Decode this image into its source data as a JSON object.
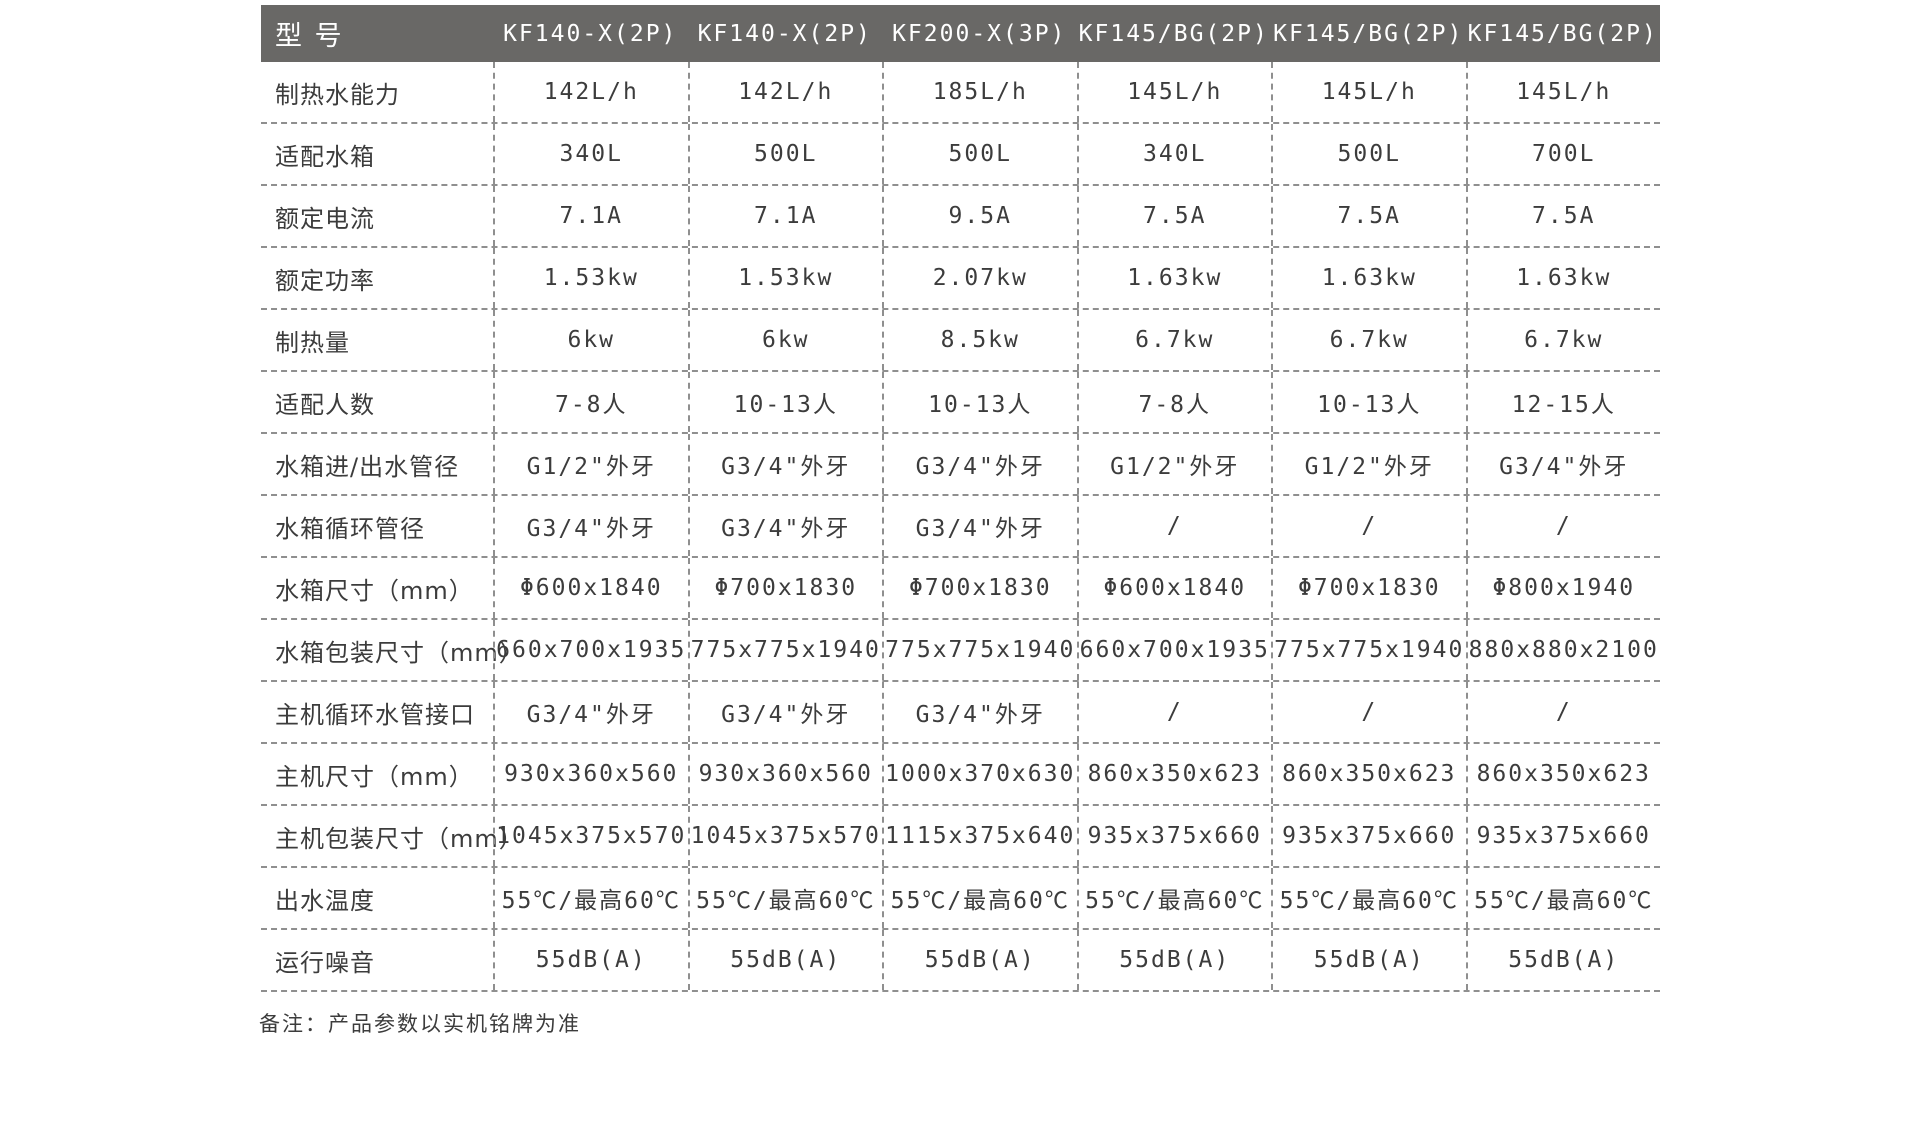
{
  "table": {
    "header": {
      "label": "型 号",
      "models": [
        "KF140-X(2P)",
        "KF140-X(2P)",
        "KF200-X(3P)",
        "KF145/BG(2P)",
        "KF145/BG(2P)",
        "KF145/BG(2P)"
      ]
    },
    "rows": [
      {
        "label": "制热水能力",
        "values": [
          "142L/h",
          "142L/h",
          "185L/h",
          "145L/h",
          "145L/h",
          "145L/h"
        ]
      },
      {
        "label": "适配水箱",
        "values": [
          "340L",
          "500L",
          "500L",
          "340L",
          "500L",
          "700L"
        ]
      },
      {
        "label": "额定电流",
        "values": [
          "7.1A",
          "7.1A",
          "9.5A",
          "7.5A",
          "7.5A",
          "7.5A"
        ]
      },
      {
        "label": "额定功率",
        "values": [
          "1.53kw",
          "1.53kw",
          "2.07kw",
          "1.63kw",
          "1.63kw",
          "1.63kw"
        ]
      },
      {
        "label": "制热量",
        "values": [
          "6kw",
          "6kw",
          "8.5kw",
          "6.7kw",
          "6.7kw",
          "6.7kw"
        ]
      },
      {
        "label": "适配人数",
        "values": [
          "7-8人",
          "10-13人",
          "10-13人",
          "7-8人",
          "10-13人",
          "12-15人"
        ]
      },
      {
        "label": "水箱进/出水管径",
        "values": [
          "G1/2\"外牙",
          "G3/4\"外牙",
          "G3/4\"外牙",
          "G1/2\"外牙",
          "G1/2\"外牙",
          "G3/4\"外牙"
        ]
      },
      {
        "label": "水箱循环管径",
        "values": [
          "G3/4\"外牙",
          "G3/4\"外牙",
          "G3/4\"外牙",
          "/",
          "/",
          "/"
        ]
      },
      {
        "label": "水箱尺寸（mm）",
        "values": [
          "Φ600x1840",
          "Φ700x1830",
          "Φ700x1830",
          "Φ600x1840",
          "Φ700x1830",
          "Φ800x1940"
        ]
      },
      {
        "label": "水箱包装尺寸（mm）",
        "values": [
          "660x700x1935",
          "775x775x1940",
          "775x775x1940",
          "660x700x1935",
          "775x775x1940",
          "880x880x2100"
        ]
      },
      {
        "label": "主机循环水管接口",
        "values": [
          "G3/4\"外牙",
          "G3/4\"外牙",
          "G3/4\"外牙",
          "/",
          "/",
          "/"
        ]
      },
      {
        "label": "主机尺寸（mm）",
        "values": [
          "930x360x560",
          "930x360x560",
          "1000x370x630",
          "860x350x623",
          "860x350x623",
          "860x350x623"
        ]
      },
      {
        "label": "主机包装尺寸（mm）",
        "values": [
          "1045x375x570",
          "1045x375x570",
          "1115x375x640",
          "935x375x660",
          "935x375x660",
          "935x375x660"
        ]
      },
      {
        "label": "出水温度",
        "values": [
          "55℃/最高60℃",
          "55℃/最高60℃",
          "55℃/最高60℃",
          "55℃/最高60℃",
          "55℃/最高60℃",
          "55℃/最高60℃"
        ]
      },
      {
        "label": "运行噪音",
        "values": [
          "55dB(A)",
          "55dB(A)",
          "55dB(A)",
          "55dB(A)",
          "55dB(A)",
          "55dB(A)"
        ]
      }
    ],
    "note": "备注：产品参数以实机铭牌为准"
  },
  "colors": {
    "header_bg": "#696866",
    "header_text": "#ffffff",
    "body_text": "#3c3c3c",
    "grid_line": "#8f8f8f",
    "page_bg": "#ffffff"
  }
}
